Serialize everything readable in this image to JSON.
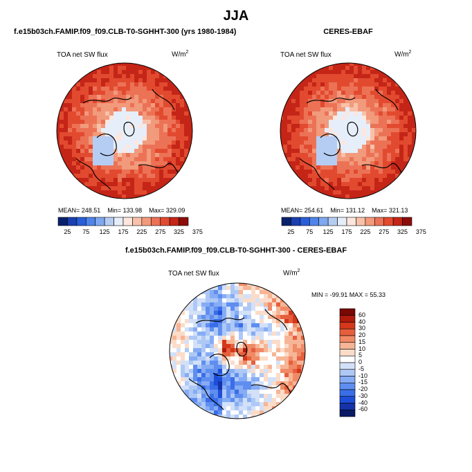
{
  "season": "JJA",
  "colors": {
    "abs_scale": [
      "#08216b",
      "#1a3fb0",
      "#2a5ed8",
      "#4f85ea",
      "#7fa8f0",
      "#b6cdf3",
      "#e6eef9",
      "#fde6dd",
      "#f8c1aa",
      "#f29a7c",
      "#ec7256",
      "#e24a2f",
      "#c42517",
      "#8c0d0a"
    ],
    "diff_scale": [
      "#0a1a66",
      "#1532a8",
      "#1e4ed8",
      "#3a6ee8",
      "#5f8ef0",
      "#86acf4",
      "#aec8f6",
      "#d3e1f8",
      "#ffffff",
      "#fbdcc9",
      "#f6b596",
      "#f08a66",
      "#e65f3c",
      "#d4371b",
      "#b01b0c",
      "#7a0805"
    ]
  },
  "chart_data": [
    {
      "type": "heatmap",
      "projection": "north-polar-stereographic",
      "title": "f.e15b03ch.FAMIP.f09_f09.CLB-T0-SGHHT-300 (yrs 1980-1984)",
      "label": "TOA net SW flux",
      "units": "W/m",
      "units_exp": "2",
      "stats": {
        "mean": "248.51",
        "min": "133.98",
        "max": "329.09"
      },
      "stats_text": {
        "mean": "MEAN= 248.51",
        "min": "Min= 133.98",
        "max": "Max= 329.09"
      },
      "colorbar": {
        "orientation": "horizontal",
        "tick_labels": [
          "25",
          "75",
          "125",
          "175",
          "225",
          "275",
          "325",
          "375"
        ]
      }
    },
    {
      "type": "heatmap",
      "projection": "north-polar-stereographic",
      "title": "CERES-EBAF",
      "label": "TOA net SW flux",
      "units": "W/m",
      "units_exp": "2",
      "stats": {
        "mean": "254.61",
        "min": "131.12",
        "max": "321.13"
      },
      "stats_text": {
        "mean": "MEAN= 254.61",
        "min": "Min= 131.12",
        "max": "Max= 321.13"
      },
      "colorbar": {
        "orientation": "horizontal",
        "tick_labels": [
          "25",
          "75",
          "125",
          "175",
          "225",
          "275",
          "325",
          "375"
        ]
      }
    },
    {
      "type": "heatmap",
      "projection": "north-polar-stereographic",
      "title": "f.e15b03ch.FAMIP.f09_f09.CLB-T0-SGHHT-300 - CERES-EBAF",
      "label": "TOA net SW flux",
      "units": "W/m",
      "units_exp": "2",
      "stats": {
        "min": "-99.91",
        "max": "55.33"
      },
      "stats_text": "MIN = -99.91  MAX = 55.33",
      "colorbar": {
        "orientation": "vertical",
        "tick_labels": [
          "60",
          "40",
          "30",
          "20",
          "15",
          "10",
          "5",
          "0",
          "-5",
          "-10",
          "-15",
          "-20",
          "-30",
          "-40",
          "-60"
        ]
      }
    }
  ]
}
